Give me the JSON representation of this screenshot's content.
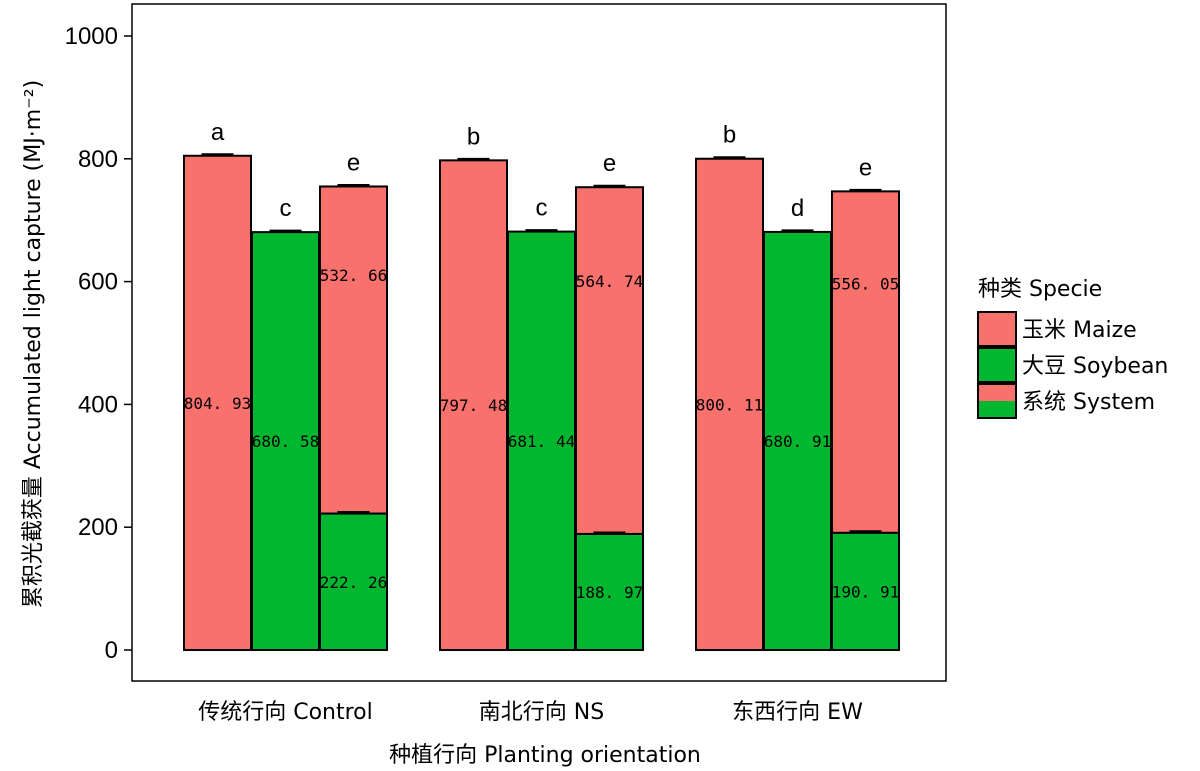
{
  "colors": {
    "maize": "#f8716d",
    "soybean": "#00b72f",
    "frame": "#000000"
  },
  "chart_data": {
    "type": "bar",
    "stacked": "system bar stacked (soybean bottom, maize top)",
    "categories": [
      "传统行向 Control",
      "南北行向 NS",
      "东西行向 EW"
    ],
    "ylabel": "累积光截获量 Accumulated light capture (MJ·m⁻²)",
    "xlabel": "种植行向 Planting orientation",
    "ylim": [
      0,
      1000
    ],
    "yticks": [
      "0",
      "200",
      "400",
      "600",
      "800",
      "1000"
    ],
    "grid": false,
    "legend_position": "right",
    "legend": {
      "title": "种类 Specie",
      "items": [
        {
          "label": "玉米 Maize",
          "swatch": "maize"
        },
        {
          "label": "大豆 Soybean",
          "swatch": "soybean"
        },
        {
          "label": "系统 System",
          "swatch": "system"
        }
      ]
    },
    "groups": [
      {
        "category": "传统行向 Control",
        "maize": {
          "value": 804.93,
          "label": "804. 93",
          "sig": "a"
        },
        "soybean": {
          "value": 680.58,
          "label": "680. 58",
          "sig": "c"
        },
        "system": {
          "total": 754.92,
          "soybean_part": 222.26,
          "maize_part": 532.66,
          "soybean_label": "222. 26",
          "maize_label": "532. 66",
          "sig": "e"
        }
      },
      {
        "category": "南北行向 NS",
        "maize": {
          "value": 797.48,
          "label": "797. 48",
          "sig": "b"
        },
        "soybean": {
          "value": 681.44,
          "label": "681. 44",
          "sig": "c"
        },
        "system": {
          "total": 753.71,
          "soybean_part": 188.97,
          "maize_part": 564.74,
          "soybean_label": "188. 97",
          "maize_label": "564. 74",
          "sig": "e"
        }
      },
      {
        "category": "东西行向 EW",
        "maize": {
          "value": 800.11,
          "label": "800. 11",
          "sig": "b"
        },
        "soybean": {
          "value": 680.91,
          "label": "680. 91",
          "sig": "d"
        },
        "system": {
          "total": 746.96,
          "soybean_part": 190.91,
          "maize_part": 556.05,
          "soybean_label": "190. 91",
          "maize_label": "556. 05",
          "sig": "e"
        }
      }
    ]
  }
}
